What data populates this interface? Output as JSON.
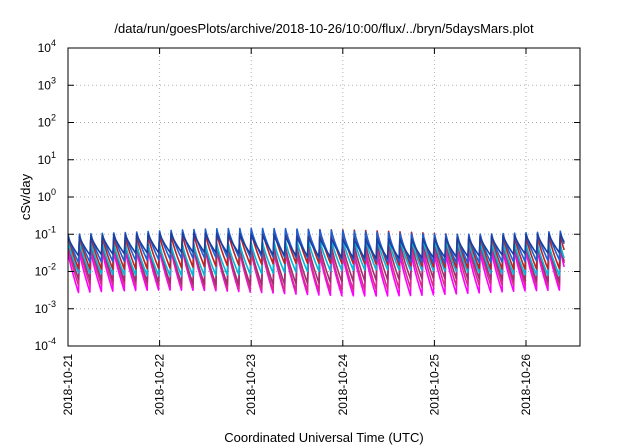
{
  "chart_data": {
    "type": "line",
    "title": "/data/run/goesPlots/archive/2018-10-26/10:00/flux/../bryn/5daysMars.plot",
    "xlabel": "Coordinated Universal Time (UTC)",
    "ylabel": "cSv/day",
    "y_scale": "log",
    "ylim": [
      0.0001,
      10000
    ],
    "xlim": [
      "2018-10-21T00:00",
      "2018-10-26T10:00"
    ],
    "x_tick_labels": [
      "2018-10-21",
      "2018-10-22",
      "2018-10-23",
      "2018-10-24",
      "2018-10-25",
      "2018-10-26"
    ],
    "y_ticks": [
      {
        "base": "10",
        "exp": "-4",
        "value": 0.0001
      },
      {
        "base": "10",
        "exp": "-3",
        "value": 0.001
      },
      {
        "base": "10",
        "exp": "-2",
        "value": 0.01
      },
      {
        "base": "10",
        "exp": "-1",
        "value": 0.1
      },
      {
        "base": "10",
        "exp": "0",
        "value": 1
      },
      {
        "base": "10",
        "exp": "1",
        "value": 10
      },
      {
        "base": "10",
        "exp": "2",
        "value": 100
      },
      {
        "base": "10",
        "exp": "3",
        "value": 1000
      },
      {
        "base": "10",
        "exp": "4",
        "value": 10000
      }
    ],
    "grid": true,
    "legend": "none",
    "cycle_hours": 3,
    "series": [
      {
        "color": "#ff00ff",
        "peak": 0.035,
        "trough": 0.0022
      },
      {
        "color": "#d62d8c",
        "peak": 0.045,
        "trough": 0.003
      },
      {
        "color": "#a0306e",
        "peak": 0.055,
        "trough": 0.0045
      },
      {
        "color": "#00b8d8",
        "peak": 0.065,
        "trough": 0.008
      },
      {
        "color": "#c02020",
        "peak": 0.11,
        "trough": 0.012
      },
      {
        "color": "#1f5fd0",
        "peak": 0.12,
        "trough": 0.018
      },
      {
        "color": "#1a3fa0",
        "peak": 0.09,
        "trough": 0.025
      }
    ]
  }
}
